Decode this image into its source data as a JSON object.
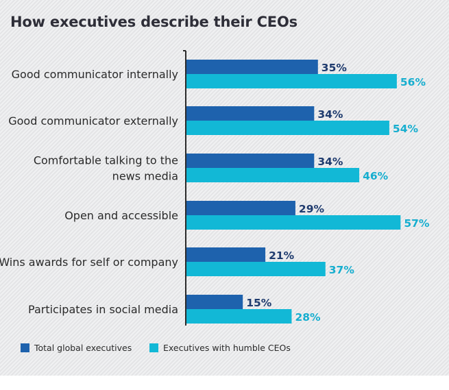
{
  "chart_data": {
    "type": "bar",
    "orientation": "horizontal",
    "title": "How executives describe their CEOs",
    "categories": [
      [
        "Good communicator internally"
      ],
      [
        "Good communicator externally"
      ],
      [
        "Comfortable talking to the",
        "news media"
      ],
      [
        "Open and accessible"
      ],
      [
        "Wins awards for self or company"
      ],
      [
        "Participates in social media"
      ]
    ],
    "series": [
      {
        "name": "Total global executives",
        "values": [
          35,
          34,
          34,
          29,
          21,
          15
        ],
        "labels": [
          "35%",
          "34%",
          "34%",
          "29%",
          "21%",
          "15%"
        ],
        "color": "#1e62ad",
        "label_color": "#1f3b6e"
      },
      {
        "name": "Executives with humble CEOs",
        "values": [
          56,
          54,
          46,
          57,
          37,
          28
        ],
        "labels": [
          "56%",
          "54%",
          "46%",
          "57%",
          "37%",
          "28%"
        ],
        "color": "#12b8d6",
        "label_color": "#16aecf"
      }
    ],
    "xlim": [
      0,
      100
    ],
    "grid": false,
    "legend_position": "bottom"
  }
}
